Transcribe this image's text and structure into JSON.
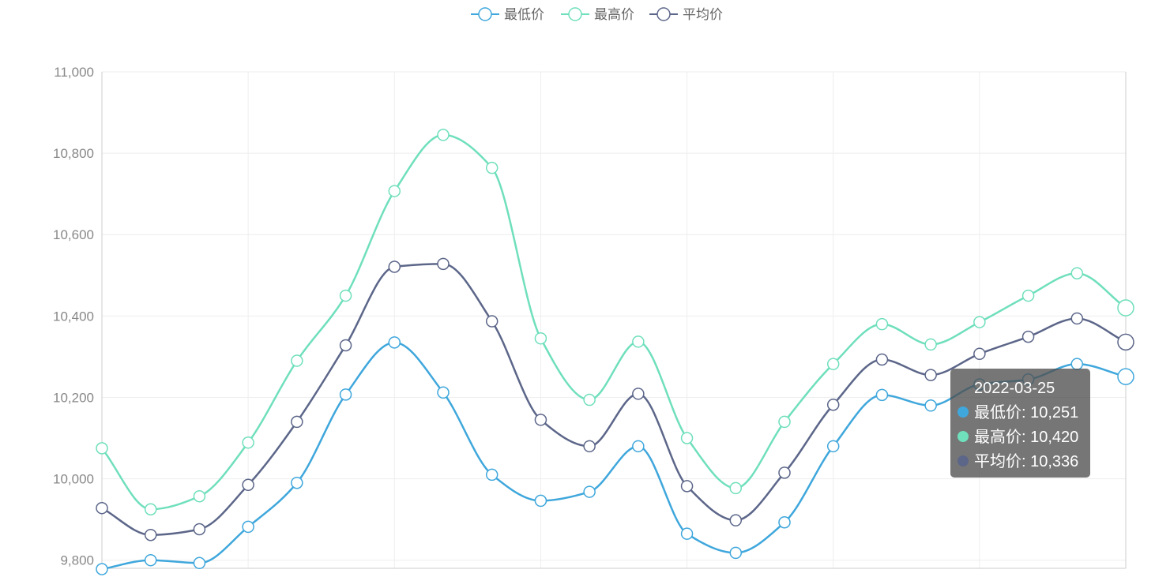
{
  "chart_data": {
    "type": "line",
    "smooth": true,
    "legend_position": "top-center",
    "grid": true,
    "x": [
      "",
      "",
      "",
      "",
      "",
      "",
      "",
      "",
      "",
      "",
      "",
      "",
      "",
      "",
      "",
      "",
      "",
      "",
      "",
      "",
      "",
      "2022-03-25"
    ],
    "ylim": [
      9780,
      11000
    ],
    "yticks": [
      9800,
      10000,
      10200,
      10400,
      10600,
      10800,
      11000
    ],
    "ytick_labels": [
      "9,800",
      "10,000",
      "10,200",
      "10,400",
      "10,600",
      "10,800",
      "11,000"
    ],
    "series": [
      {
        "name": "最低价",
        "color": "#3fa7dc",
        "values": [
          9778,
          9800,
          9793,
          9882,
          9990,
          10207,
          10335,
          10212,
          10010,
          9946,
          9968,
          10080,
          9865,
          9818,
          9893,
          10080,
          10206,
          10180,
          10232,
          10244,
          10282,
          10251
        ]
      },
      {
        "name": "最高价",
        "color": "#6fdfbc",
        "values": [
          10075,
          9925,
          9957,
          10089,
          10290,
          10450,
          10707,
          10845,
          10764,
          10345,
          10194,
          10337,
          10100,
          9977,
          10140,
          10282,
          10380,
          10330,
          10385,
          10450,
          10505,
          10420
        ]
      },
      {
        "name": "平均价",
        "color": "#5c6689",
        "values": [
          9928,
          9862,
          9876,
          9985,
          10140,
          10328,
          10521,
          10528,
          10387,
          10145,
          10080,
          10209,
          9982,
          9898,
          10015,
          10182,
          10293,
          10255,
          10307,
          10349,
          10394,
          10336
        ]
      }
    ],
    "tooltip": {
      "title": "2022-03-25",
      "rows": [
        {
          "label": "最低价: 10,251",
          "color": "#3fa7dc"
        },
        {
          "label": "最高价: 10,420",
          "color": "#6fdfbc"
        },
        {
          "label": "平均价: 10,336",
          "color": "#5c6689"
        }
      ]
    }
  }
}
